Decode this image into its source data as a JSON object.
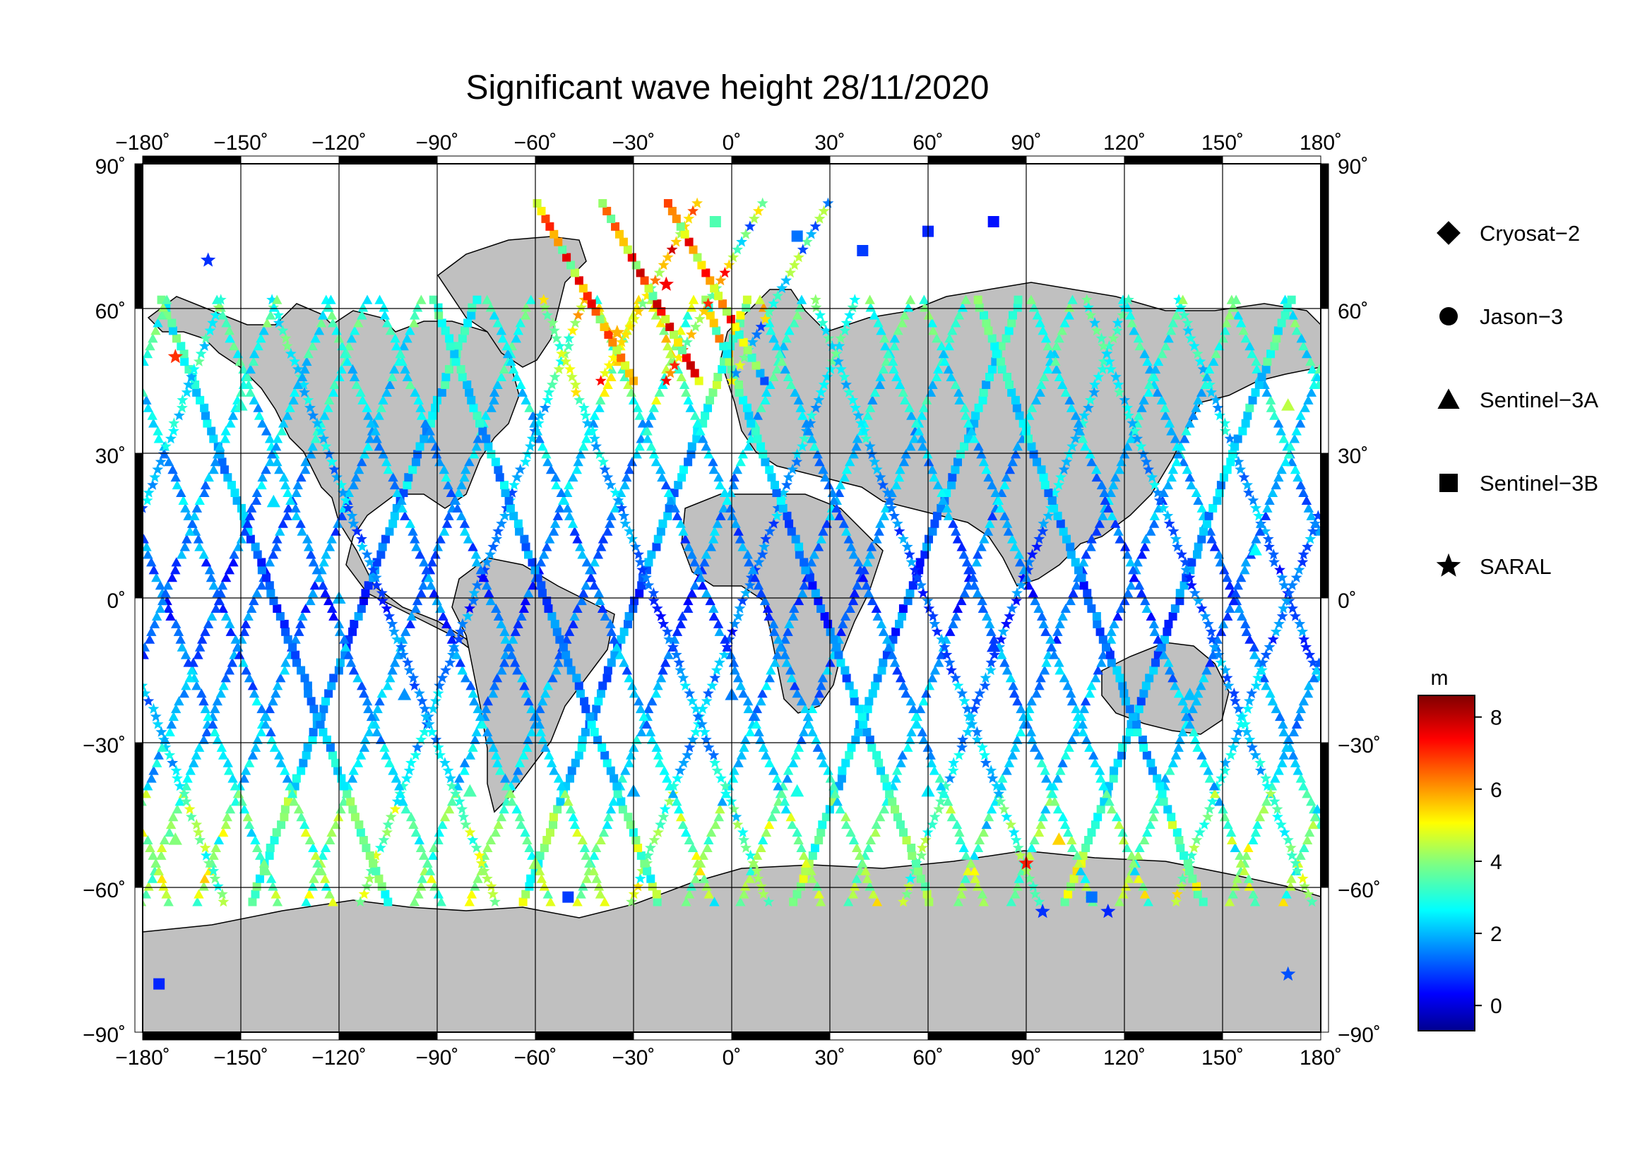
{
  "title": "Significant wave height 28/11/2020",
  "map": {
    "lon_ticks": [
      "−180˚",
      "−150˚",
      "−120˚",
      "−90˚",
      "−60˚",
      "−30˚",
      "0˚",
      "30˚",
      "60˚",
      "90˚",
      "120˚",
      "150˚",
      "180˚"
    ],
    "lat_ticks_left": [
      "90˚",
      "60˚",
      "30˚",
      "0˚",
      "−30˚",
      "−60˚",
      "−90˚"
    ],
    "lat_ticks_right": [
      "90˚",
      "60˚",
      "30˚",
      "0˚",
      "−30˚",
      "−60˚",
      "−90˚"
    ],
    "lon_range": [
      -180,
      180
    ],
    "lat_range": [
      -90,
      90
    ],
    "land_color": "#c0c0c0",
    "ocean_color": "#ffffff"
  },
  "legend": {
    "items": [
      {
        "label": "Cryosat−2",
        "marker": "diamond"
      },
      {
        "label": "Jason−3",
        "marker": "circle"
      },
      {
        "label": "Sentinel−3A",
        "marker": "triangle"
      },
      {
        "label": "Sentinel−3B",
        "marker": "square"
      },
      {
        "label": "SARAL",
        "marker": "star"
      }
    ]
  },
  "colorbar": {
    "unit": "m",
    "range": [
      -0.7,
      8.6
    ],
    "ticks": [
      "0",
      "2",
      "4",
      "6",
      "8"
    ],
    "tick_values": [
      0,
      2,
      4,
      6,
      8
    ],
    "colormap": "jet"
  },
  "chart_data": {
    "type": "scatter",
    "title": "Significant wave height 28/11/2020",
    "xlim": [
      -180,
      180
    ],
    "ylim": [
      -90,
      90
    ],
    "xlabel": "",
    "ylabel": "",
    "color_unit": "m",
    "series": [
      {
        "name": "Sentinel−3A",
        "marker": "triangle",
        "points": [
          [
            -150,
            40,
            3.2
          ],
          [
            -140,
            20,
            2.5
          ],
          [
            -120,
            0,
            2.1
          ],
          [
            -100,
            -20,
            1.8
          ],
          [
            -80,
            -40,
            3.5
          ],
          [
            -60,
            -55,
            4.2
          ],
          [
            -30,
            -40,
            2.0
          ],
          [
            0,
            -20,
            1.6
          ],
          [
            20,
            -40,
            3.0
          ],
          [
            60,
            -40,
            2.6
          ],
          [
            80,
            -10,
            1.0
          ],
          [
            100,
            -50,
            5.5
          ],
          [
            140,
            -20,
            2.2
          ],
          [
            160,
            10,
            2.8
          ],
          [
            170,
            40,
            4.5
          ],
          [
            -170,
            -50,
            4.0
          ]
        ]
      },
      {
        "name": "Sentinel−3B",
        "marker": "square",
        "points": [
          [
            20,
            75,
            1.5
          ],
          [
            40,
            72,
            1.0
          ],
          [
            60,
            76,
            0.8
          ],
          [
            80,
            78,
            0.6
          ],
          [
            -5,
            78,
            3.5
          ],
          [
            -50,
            -62,
            1.0
          ],
          [
            110,
            -62,
            1.5
          ],
          [
            -175,
            -80,
            0.8
          ]
        ]
      },
      {
        "name": "SARAL",
        "marker": "star",
        "points": [
          [
            -20,
            65,
            7.5
          ],
          [
            -35,
            55,
            5.8
          ],
          [
            -170,
            50,
            7.0
          ],
          [
            90,
            -55,
            7.2
          ],
          [
            95,
            -65,
            0.9
          ],
          [
            115,
            -65,
            0.8
          ],
          [
            170,
            -78,
            1.2
          ],
          [
            -160,
            70,
            0.9
          ]
        ]
      }
    ]
  }
}
